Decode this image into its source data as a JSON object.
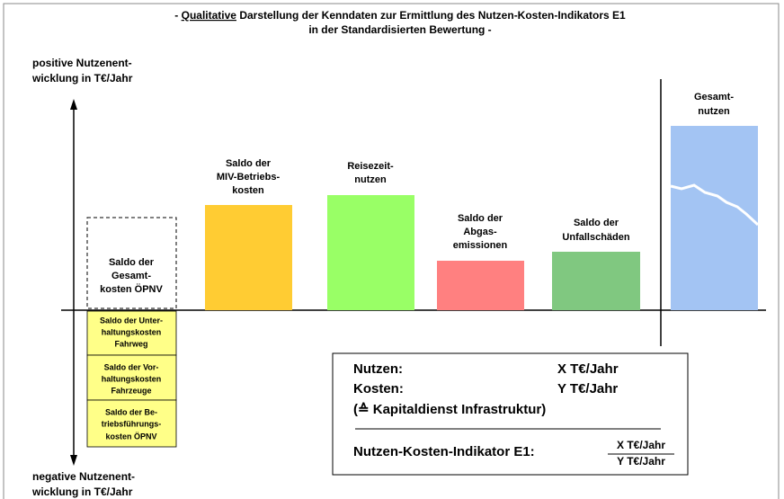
{
  "title": {
    "lead": "-",
    "emphasis": "Qualitative",
    "line1": "Darstellung der Kenndaten zur Ermittlung des Nutzen-Kosten-Indikators E1",
    "line2": "in der Standardisierten Bewertung -"
  },
  "axis": {
    "positive": [
      "positive Nutzenent-",
      "wicklung in T€/Jahr"
    ],
    "negative": [
      "negative Nutzenent-",
      "wicklung in T€/Jahr"
    ]
  },
  "bars": [
    {
      "label": [
        "Saldo der",
        "Gesamt-",
        "kosten ÖPNV"
      ]
    },
    {
      "label": [
        "Saldo der",
        "MIV-Betriebs-",
        "kosten"
      ]
    },
    {
      "label": [
        "Reisezeit-",
        "nutzen"
      ]
    },
    {
      "label": [
        "Saldo der",
        "Abgas-",
        "emissionen"
      ]
    },
    {
      "label": [
        "Saldo der",
        "Unfallschäden"
      ]
    },
    {
      "label": [
        "Gesamt-",
        "nutzen"
      ]
    }
  ],
  "cost_parts": [
    [
      "Saldo der Unter-",
      "haltungskosten",
      "Fahrweg"
    ],
    [
      "Saldo der Vor-",
      "haltungskosten",
      "Fahrzeuge"
    ],
    [
      "Saldo der Be-",
      "triebsführungs-",
      "kosten ÖPNV"
    ]
  ],
  "summary": {
    "benefit_label": "Nutzen:",
    "benefit_value": "X T€/Jahr",
    "cost_label": "Kosten:",
    "cost_value": "Y T€/Jahr",
    "cost_note": "(≙ Kapitaldienst Infrastruktur)",
    "indicator_label": "Nutzen-Kosten-Indikator E1:",
    "numerator": "X T€/Jahr",
    "denominator": "Y T€/Jahr"
  }
}
